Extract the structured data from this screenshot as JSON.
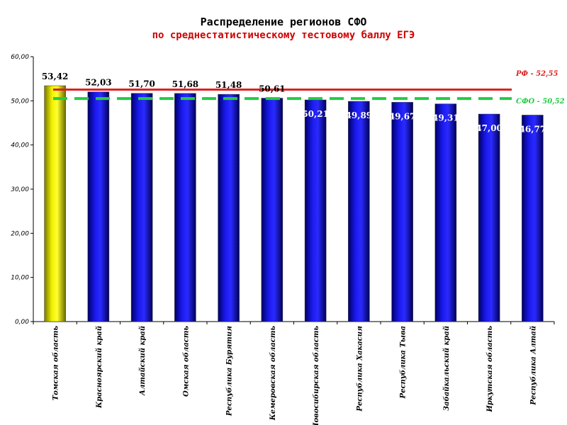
{
  "chart_data": {
    "type": "bar",
    "title": "Распределение регионов СФО",
    "subtitle": "по среднестатистическому тестовому баллу ЕГЭ",
    "categories": [
      "Томская область",
      "Красноярский край",
      "Алтайский край",
      "Омская область",
      "Республика Бурятия",
      "Кемеровская область",
      "Новосибирская область",
      "Республика Хакасия",
      "Республика Тыва",
      "Забайкальский край",
      "Иркутская область",
      "Республика Алтай"
    ],
    "values": [
      53.42,
      52.03,
      51.7,
      51.68,
      51.48,
      50.61,
      50.21,
      49.89,
      49.67,
      49.31,
      47.0,
      46.77
    ],
    "value_labels": [
      "53,42",
      "52,03",
      "51,70",
      "51,68",
      "51,48",
      "50,61",
      "50,21",
      "49,89",
      "49,67",
      "49,31",
      "47,00",
      "46,77"
    ],
    "ylim": [
      0,
      60
    ],
    "yticks": [
      "0,00",
      "10,00",
      "20,00",
      "30,00",
      "40,00",
      "50,00",
      "60,00"
    ],
    "grid": false,
    "reference_lines": [
      {
        "label": "РФ - 52,55",
        "value": 52.55,
        "color": "#e02020",
        "style": "solid"
      },
      {
        "label": "СФО - 50,52",
        "value": 50.52,
        "color": "#22cc44",
        "style": "dashed"
      }
    ],
    "colors": {
      "highlight_bar": "#e8e000",
      "bar": "#1414cc",
      "inside_label": "#ffffff",
      "outside_label": "#000000",
      "title": "#000000",
      "subtitle": "#d00000"
    }
  }
}
